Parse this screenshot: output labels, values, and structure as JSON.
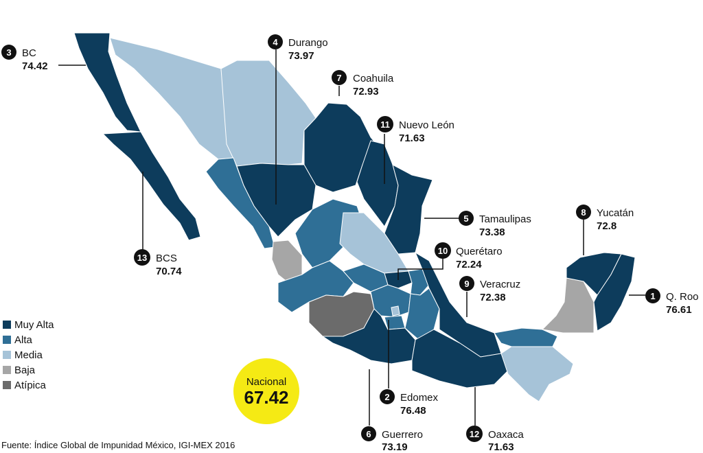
{
  "colors": {
    "muy_alta": "#0d3c5c",
    "alta": "#2f6f96",
    "media": "#a6c3d8",
    "baja": "#a6a6a6",
    "atipica": "#6b6b6b",
    "nacional_bg": "#f5ea14"
  },
  "legend": [
    {
      "label": "Muy Alta",
      "color": "#0d3c5c"
    },
    {
      "label": "Alta",
      "color": "#2f6f96"
    },
    {
      "label": "Media",
      "color": "#a6c3d8"
    },
    {
      "label": "Baja",
      "color": "#a6a6a6"
    },
    {
      "label": "Atípica",
      "color": "#6b6b6b"
    }
  ],
  "ranked_states": [
    {
      "rank": "1",
      "name": "Q. Roo",
      "value": "76.61"
    },
    {
      "rank": "2",
      "name": "Edomex",
      "value": "76.48"
    },
    {
      "rank": "3",
      "name": "BC",
      "value": "74.42"
    },
    {
      "rank": "4",
      "name": "Durango",
      "value": "73.97"
    },
    {
      "rank": "5",
      "name": "Tamaulipas",
      "value": "73.38"
    },
    {
      "rank": "6",
      "name": "Guerrero",
      "value": "73.19"
    },
    {
      "rank": "7",
      "name": "Coahuila",
      "value": "72.93"
    },
    {
      "rank": "8",
      "name": "Yucatán",
      "value": "72.8"
    },
    {
      "rank": "9",
      "name": "Veracruz",
      "value": "72.38"
    },
    {
      "rank": "10",
      "name": "Querétaro",
      "value": "72.24"
    },
    {
      "rank": "11",
      "name": "Nuevo León",
      "value": "71.63"
    },
    {
      "rank": "12",
      "name": "Oaxaca",
      "value": "71.63"
    },
    {
      "rank": "13",
      "name": "BCS",
      "value": "70.74"
    }
  ],
  "nacional": {
    "label": "Nacional",
    "value": "67.42"
  },
  "source": "Fuente: Índice Global de Impunidad México, IGI-MEX 2016"
}
